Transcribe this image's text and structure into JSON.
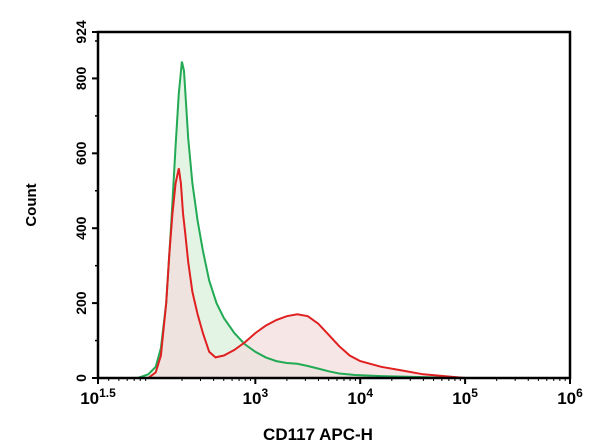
{
  "chart_data": {
    "type": "area",
    "xlabel": "CD117 APC-H",
    "ylabel": "Count",
    "x_scale": "log",
    "xlim": [
      1.5,
      6
    ],
    "ylim": [
      0,
      924
    ],
    "x_ticks": [
      {
        "base": "10",
        "exp": "1.5",
        "value": 1.5
      },
      {
        "base": "10",
        "exp": "3",
        "value": 3
      },
      {
        "base": "10",
        "exp": "4",
        "value": 4
      },
      {
        "base": "10",
        "exp": "5",
        "value": 5
      },
      {
        "base": "10",
        "exp": "6",
        "value": 6
      }
    ],
    "y_ticks": [
      "0",
      "200",
      "400",
      "600",
      "800",
      "924"
    ],
    "y_tick_values": [
      0,
      200,
      400,
      600,
      800,
      924
    ],
    "grid": false,
    "series": [
      {
        "color": "#22aa55",
        "fill": "#d9f0dc",
        "points": [
          [
            1.88,
            0
          ],
          [
            1.98,
            10
          ],
          [
            2.05,
            30
          ],
          [
            2.1,
            80
          ],
          [
            2.15,
            200
          ],
          [
            2.2,
            420
          ],
          [
            2.24,
            620
          ],
          [
            2.27,
            760
          ],
          [
            2.3,
            845
          ],
          [
            2.32,
            820
          ],
          [
            2.34,
            730
          ],
          [
            2.36,
            640
          ],
          [
            2.4,
            520
          ],
          [
            2.45,
            420
          ],
          [
            2.5,
            340
          ],
          [
            2.56,
            260
          ],
          [
            2.63,
            200
          ],
          [
            2.7,
            160
          ],
          [
            2.8,
            120
          ],
          [
            2.9,
            90
          ],
          [
            3.0,
            70
          ],
          [
            3.1,
            55
          ],
          [
            3.2,
            45
          ],
          [
            3.3,
            40
          ],
          [
            3.4,
            38
          ],
          [
            3.5,
            32
          ],
          [
            3.6,
            25
          ],
          [
            3.7,
            18
          ],
          [
            3.8,
            12
          ],
          [
            3.95,
            8
          ],
          [
            4.2,
            5
          ],
          [
            4.5,
            3
          ],
          [
            4.8,
            1
          ],
          [
            5.0,
            0
          ]
        ]
      },
      {
        "color": "#e02020",
        "fill": "#f3dede",
        "points": [
          [
            1.98,
            0
          ],
          [
            2.05,
            15
          ],
          [
            2.1,
            60
          ],
          [
            2.15,
            200
          ],
          [
            2.18,
            330
          ],
          [
            2.21,
            440
          ],
          [
            2.24,
            520
          ],
          [
            2.27,
            560
          ],
          [
            2.29,
            520
          ],
          [
            2.31,
            440
          ],
          [
            2.33,
            390
          ],
          [
            2.36,
            310
          ],
          [
            2.4,
            230
          ],
          [
            2.45,
            170
          ],
          [
            2.5,
            120
          ],
          [
            2.56,
            70
          ],
          [
            2.62,
            55
          ],
          [
            2.7,
            60
          ],
          [
            2.8,
            75
          ],
          [
            2.9,
            95
          ],
          [
            3.0,
            120
          ],
          [
            3.1,
            140
          ],
          [
            3.2,
            155
          ],
          [
            3.3,
            165
          ],
          [
            3.4,
            170
          ],
          [
            3.5,
            165
          ],
          [
            3.6,
            145
          ],
          [
            3.7,
            115
          ],
          [
            3.8,
            85
          ],
          [
            3.9,
            60
          ],
          [
            4.0,
            45
          ],
          [
            4.2,
            30
          ],
          [
            4.4,
            20
          ],
          [
            4.6,
            10
          ],
          [
            4.8,
            5
          ],
          [
            5.0,
            0
          ]
        ]
      }
    ]
  }
}
